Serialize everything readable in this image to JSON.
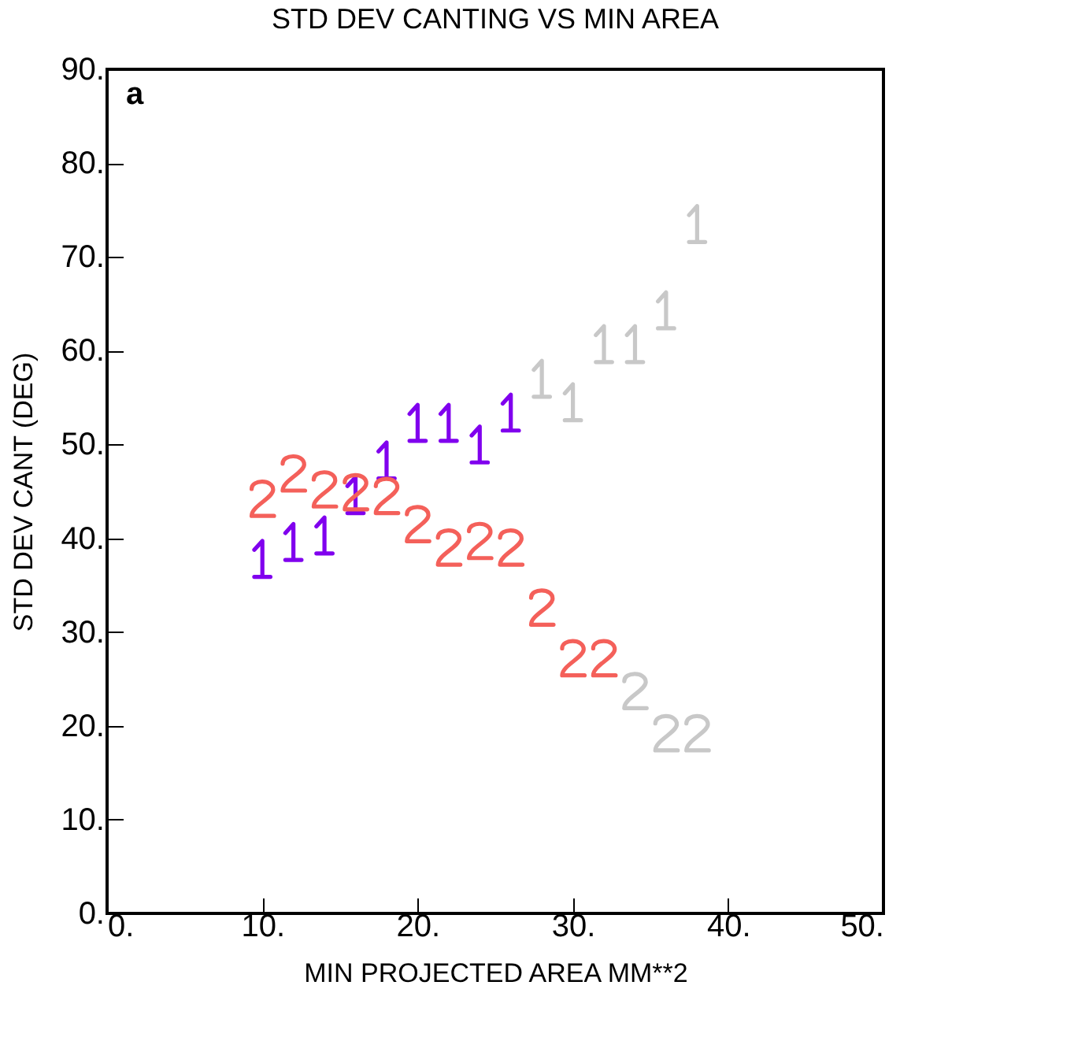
{
  "chart_data": {
    "type": "scatter",
    "title": "STD DEV CANTING VS MIN AREA",
    "xlabel": "MIN PROJECTED AREA MM**2",
    "ylabel": "STD DEV CANT (DEG)",
    "annotations": [
      "a"
    ],
    "xlim": [
      0,
      50
    ],
    "ylim": [
      0,
      90
    ],
    "xticks": [
      {
        "value": 0,
        "label": "0."
      },
      {
        "value": 10,
        "label": "10."
      },
      {
        "value": 20,
        "label": "20."
      },
      {
        "value": 30,
        "label": "30."
      },
      {
        "value": 40,
        "label": "40."
      },
      {
        "value": 50,
        "label": "50."
      }
    ],
    "yticks": [
      {
        "value": 0,
        "label": "0."
      },
      {
        "value": 10,
        "label": "10."
      },
      {
        "value": 20,
        "label": "20."
      },
      {
        "value": 30,
        "label": "30."
      },
      {
        "value": 40,
        "label": "40."
      },
      {
        "value": 50,
        "label": "50."
      },
      {
        "value": 60,
        "label": "60."
      },
      {
        "value": 70,
        "label": "70."
      },
      {
        "value": 80,
        "label": "80."
      },
      {
        "value": 90,
        "label": "90."
      }
    ],
    "grid": false,
    "series": [
      {
        "color": "#8000ee",
        "x": [
          10,
          12,
          14,
          16,
          18,
          20,
          22,
          24,
          26
        ],
        "values": [
          37.8,
          39.6,
          40.3,
          44.6,
          48.3,
          52.3,
          52.3,
          50,
          53.4
        ]
      },
      {
        "color": "#c8c8c8",
        "x": [
          28,
          30,
          32,
          34,
          36,
          38
        ],
        "values": [
          57,
          54.5,
          60.7,
          60.7,
          64.3,
          73.5
        ]
      },
      {
        "color": "#f4605a",
        "x": [
          10,
          12,
          14,
          16,
          18,
          20,
          22,
          24,
          26,
          28,
          30,
          32
        ],
        "values": [
          44.3,
          47,
          45.3,
          45,
          44.6,
          41.6,
          39.1,
          39.8,
          39.1,
          32.7,
          27.3,
          27.3
        ]
      },
      {
        "color": "#c8c8c8",
        "x": [
          34,
          36,
          38
        ],
        "values": [
          23.8,
          19.3,
          19.3
        ]
      }
    ]
  }
}
